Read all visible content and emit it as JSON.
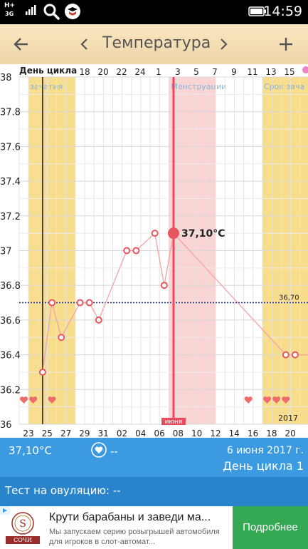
{
  "status_bar": {
    "network": "H+",
    "network_type": "3G",
    "time": "14:59",
    "icons": [
      "network-icon",
      "signal-icon",
      "search-icon",
      "app-badge-icon",
      "battery-icon"
    ]
  },
  "toolbar": {
    "back_icon": "arrow-left-icon",
    "prev_icon": "chevron-left-icon",
    "title": "Температура",
    "next_icon": "chevron-right-icon",
    "add_icon": "plus-icon",
    "bg_color": "#f3dcb2"
  },
  "chart_data": {
    "type": "line",
    "x_header_label": "День цикла",
    "top_ticks": [
      "18",
      "20",
      "22",
      "24",
      "1",
      "3",
      "5",
      "7",
      "9",
      "11",
      "13",
      "15"
    ],
    "bottom_ticks": [
      "23",
      "25",
      "27",
      "29",
      "31",
      "02",
      "04",
      "06",
      "08",
      "10",
      "12",
      "14",
      "16",
      "18",
      "20"
    ],
    "y_ticks": [
      "38",
      "37.8",
      "37.6",
      "37.4",
      "37.2",
      "37",
      "36.8",
      "36.6",
      "36.4",
      "36.2",
      "36"
    ],
    "ylim": [
      36.0,
      38.0
    ],
    "coverline": {
      "value": 36.7,
      "label": "36,70"
    },
    "regions": [
      {
        "kind": "fertile",
        "label": "зачатия",
        "from_day": 22,
        "to_day": 26,
        "color": "#f8dd8c"
      },
      {
        "kind": "menstruation",
        "label": "Менструации",
        "from_day": 37,
        "to_day": 41,
        "color": "#fad3d3"
      },
      {
        "kind": "fertile",
        "label": "Срок зача",
        "from_day": 47,
        "to_day": 52,
        "color": "#f8dd8c"
      }
    ],
    "month_label": "июня",
    "year_label": "2017",
    "selected": {
      "day": 37,
      "value": 37.1,
      "label": "37,10°C"
    },
    "today_day": 23,
    "series": [
      {
        "color": "#f4a3a3",
        "points": [
          {
            "day": 23,
            "value": 36.3
          },
          {
            "day": 24,
            "value": 36.7
          },
          {
            "day": 25,
            "value": 36.5
          },
          {
            "day": 27,
            "value": 36.7
          },
          {
            "day": 28,
            "value": 36.7
          },
          {
            "day": 29,
            "value": 36.6
          },
          {
            "day": 32,
            "value": 37.0
          },
          {
            "day": 33,
            "value": 37.0
          },
          {
            "day": 35,
            "value": 37.1
          },
          {
            "day": 36,
            "value": 36.8
          },
          {
            "day": 37,
            "value": 37.1
          },
          {
            "day": 49,
            "value": 36.4
          },
          {
            "day": 50,
            "value": 36.4
          },
          {
            "day": 52,
            "value": 36.4
          }
        ]
      }
    ],
    "heart_days": [
      21,
      22,
      24,
      45,
      47,
      48,
      49,
      52
    ],
    "grid": true
  },
  "info_bar": {
    "temperature": "37,10°C",
    "mood": "--",
    "date": "6 июня 2017 г.",
    "cycle_day": "День цикла 1",
    "heart_icon": "heart-circle-icon"
  },
  "ovulation": {
    "text": "Тест на овуляцию: --"
  },
  "ad": {
    "logo_text": "СОЧИ",
    "headline": "Крути барабаны и заведи ма...",
    "body": "Мы запускаем серию розыгрышей автомобиля для игроков в слот-автомат...",
    "cta": "Подробнее"
  }
}
